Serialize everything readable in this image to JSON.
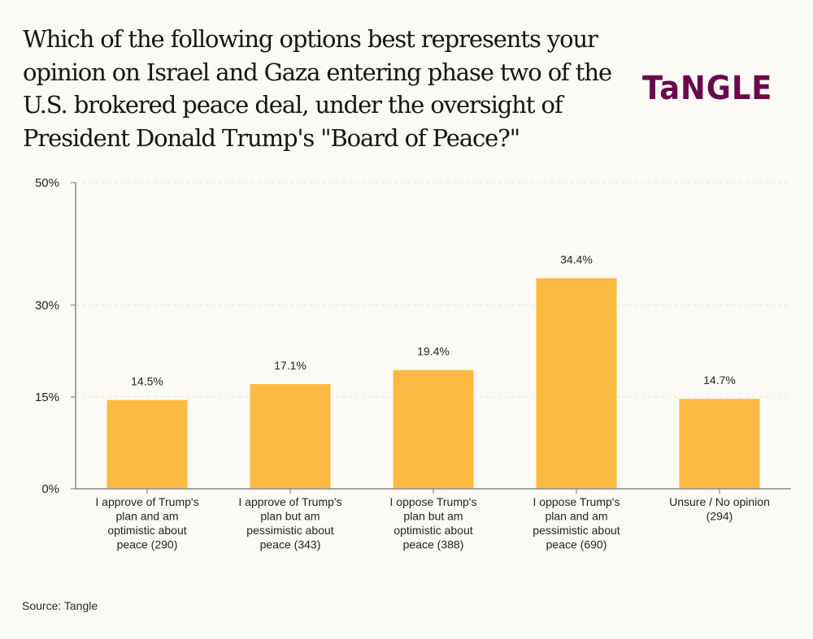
{
  "header": {
    "title": "Which of the following options best represents your opinion on Israel and Gaza entering phase two of the U.S. brokered peace deal, under the oversight of President Donald Trump's \"Board of Peace?\"",
    "logo_text": "TaNGLE"
  },
  "footer": {
    "source": "Source: Tangle"
  },
  "colors": {
    "bar": "#fdba43",
    "logo": "#690a4c",
    "background": "#fbfaf4",
    "axis": "#8a8a8a"
  },
  "chart_data": {
    "type": "bar",
    "title": "Which of the following options best represents your opinion on Israel and Gaza entering phase two of the U.S. brokered peace deal, under the oversight of President Donald Trump's \"Board of Peace?\"",
    "xlabel": "",
    "ylabel": "",
    "ylim": [
      0,
      50
    ],
    "yticks": [
      0,
      15,
      30,
      50
    ],
    "ytick_labels": [
      "0%",
      "15%",
      "30%",
      "50%"
    ],
    "grid": true,
    "legend": "none",
    "categories": [
      [
        "I approve of Trump's",
        "plan and am",
        "optimistic about",
        "peace (290)"
      ],
      [
        "I approve of Trump's",
        "plan but am",
        "pessimistic about",
        "peace (343)"
      ],
      [
        "I oppose Trump's",
        "plan but am",
        "optimistic about",
        "peace (388)"
      ],
      [
        "I oppose Trump's",
        "plan and am",
        "pessimistic about",
        "peace (690)"
      ],
      [
        "Unsure / No opinion",
        "(294)"
      ]
    ],
    "values": [
      14.5,
      17.1,
      19.4,
      34.4,
      14.7
    ],
    "value_labels": [
      "14.5%",
      "17.1%",
      "19.4%",
      "34.4%",
      "14.7%"
    ]
  }
}
